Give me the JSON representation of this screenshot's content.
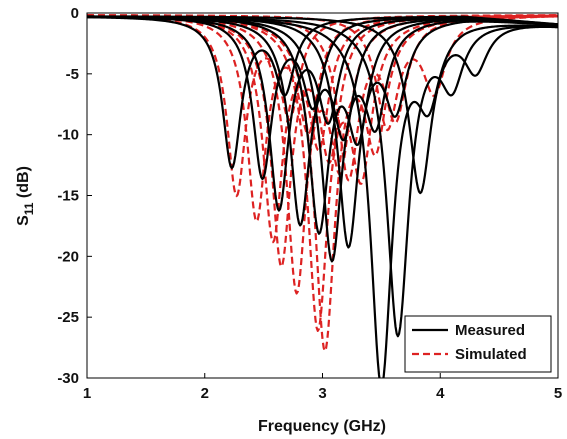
{
  "chart_data": {
    "type": "line",
    "xlabel": "Frequency (GHz)",
    "ylabel": {
      "base": "S",
      "sub": "11",
      "unit": " (dB)"
    },
    "xlim": [
      1,
      5
    ],
    "ylim": [
      -30,
      0
    ],
    "xticks": [
      1,
      2,
      3,
      4,
      5
    ],
    "yticks": [
      0,
      -5,
      -10,
      -15,
      -20,
      -25,
      -30
    ],
    "grid": false,
    "legend_position": "bottom-right",
    "colors": {
      "measured": "#000000",
      "simulated": "#dd2222"
    },
    "legend": [
      {
        "label": "Measured",
        "style": "solid",
        "color": "#000000"
      },
      {
        "label": "Simulated",
        "style": "dashed",
        "color": "#dd2222"
      }
    ],
    "series": [
      {
        "group": "Simulated",
        "resonances": [
          [
            2.27,
            14.5
          ],
          [
            2.72,
            8.0
          ]
        ]
      },
      {
        "group": "Simulated",
        "resonances": [
          [
            2.44,
            16.5
          ],
          [
            2.88,
            9.0
          ]
        ]
      },
      {
        "group": "Simulated",
        "resonances": [
          [
            2.58,
            18.0
          ],
          [
            2.97,
            10.0
          ]
        ]
      },
      {
        "group": "Simulated",
        "resonances": [
          [
            2.65,
            20.0
          ],
          [
            3.06,
            11.0
          ]
        ]
      },
      {
        "group": "Simulated",
        "resonances": [
          [
            2.78,
            22.0
          ],
          [
            3.15,
            11.5
          ]
        ]
      },
      {
        "group": "Simulated",
        "resonances": [
          [
            2.96,
            25.0
          ],
          [
            3.33,
            12.0
          ]
        ]
      },
      {
        "group": "Simulated",
        "resonances": [
          [
            3.02,
            27.0
          ],
          [
            3.45,
            10.0
          ]
        ]
      },
      {
        "group": "Simulated",
        "resonances": [
          [
            3.22,
            13.0
          ],
          [
            3.62,
            8.0
          ]
        ]
      },
      {
        "group": "Simulated",
        "resonances": [
          [
            3.55,
            9.0
          ],
          [
            3.95,
            6.0
          ]
        ]
      },
      {
        "group": "Measured",
        "resonances": [
          [
            2.23,
            12.2
          ],
          [
            2.68,
            6.0
          ]
        ]
      },
      {
        "group": "Measured",
        "resonances": [
          [
            2.49,
            13.0
          ],
          [
            2.92,
            7.0
          ]
        ]
      },
      {
        "group": "Measured",
        "resonances": [
          [
            2.63,
            15.5
          ],
          [
            3.05,
            8.0
          ]
        ]
      },
      {
        "group": "Measured",
        "resonances": [
          [
            2.81,
            16.5
          ],
          [
            3.18,
            9.0
          ]
        ]
      },
      {
        "group": "Measured",
        "resonances": [
          [
            2.97,
            17.0
          ],
          [
            3.3,
            9.0
          ]
        ]
      },
      {
        "group": "Measured",
        "resonances": [
          [
            3.08,
            19.5
          ],
          [
            3.45,
            8.0
          ]
        ]
      },
      {
        "group": "Measured",
        "resonances": [
          [
            3.22,
            18.5
          ],
          [
            3.62,
            7.0
          ]
        ]
      },
      {
        "group": "Measured",
        "resonances": [
          [
            3.5,
            30.0
          ],
          [
            3.9,
            6.0
          ]
        ]
      },
      {
        "group": "Measured",
        "resonances": [
          [
            3.64,
            26.0
          ],
          [
            4.1,
            5.0
          ]
        ]
      },
      {
        "group": "Measured",
        "resonances": [
          [
            3.83,
            14.3
          ],
          [
            4.3,
            4.0
          ]
        ]
      }
    ]
  }
}
